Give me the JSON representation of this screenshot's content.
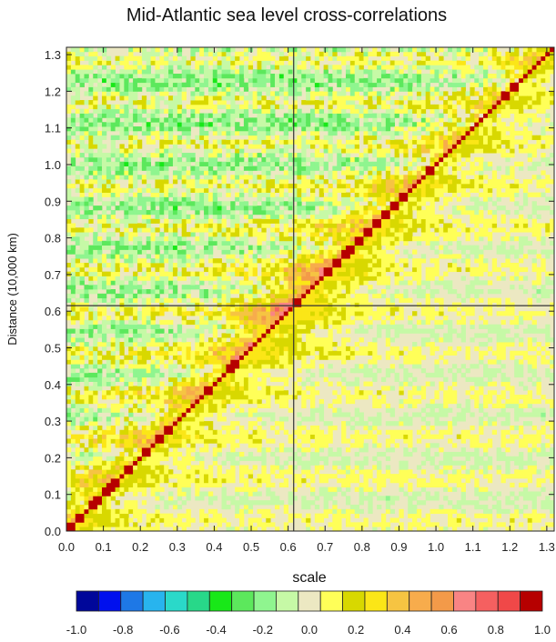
{
  "chart_data": {
    "type": "heatmap",
    "title": "Mid-Atlantic sea level cross-correlations",
    "xlabel": "scale",
    "ylabel": "Distance (10,000 km)",
    "xlim": [
      0.0,
      1.32
    ],
    "ylim": [
      0.0,
      1.32
    ],
    "x_ticks": [
      "0.0",
      "0.1",
      "0.2",
      "0.3",
      "0.4",
      "0.5",
      "0.6",
      "0.7",
      "0.8",
      "0.9",
      "1.0",
      "1.1",
      "1.2",
      "1.3"
    ],
    "y_ticks": [
      "0.0",
      "0.1",
      "0.2",
      "0.3",
      "0.4",
      "0.5",
      "0.6",
      "0.7",
      "0.8",
      "0.9",
      "1.0",
      "1.1",
      "1.2",
      "1.3"
    ],
    "reference_lines": {
      "x": 0.615,
      "y": 0.615
    },
    "colorbar": {
      "ticks": [
        "-1.0",
        "-0.8",
        "-0.6",
        "-0.4",
        "-0.2",
        "0.0",
        "0.2",
        "0.4",
        "0.6",
        "0.8",
        "1.0"
      ],
      "range": [
        -1.0,
        1.0
      ],
      "colors": [
        "#00079a",
        "#0010ee",
        "#1e78e6",
        "#28b4ee",
        "#2ad9c9",
        "#28d889",
        "#18e818",
        "#5ce85c",
        "#8ff58f",
        "#c6f9a6",
        "#ece8c2",
        "#ffff58",
        "#d8d800",
        "#fbe617",
        "#f6c442",
        "#f7ac4c",
        "#f39a49",
        "#f98484",
        "#f56060",
        "#f04848",
        "#b60000"
      ]
    },
    "description_values": {
      "diagonal_correlation": 1.0,
      "peak_center": [
        0.62,
        0.62
      ],
      "lower_right_triangle_mean": 0.0
    }
  }
}
